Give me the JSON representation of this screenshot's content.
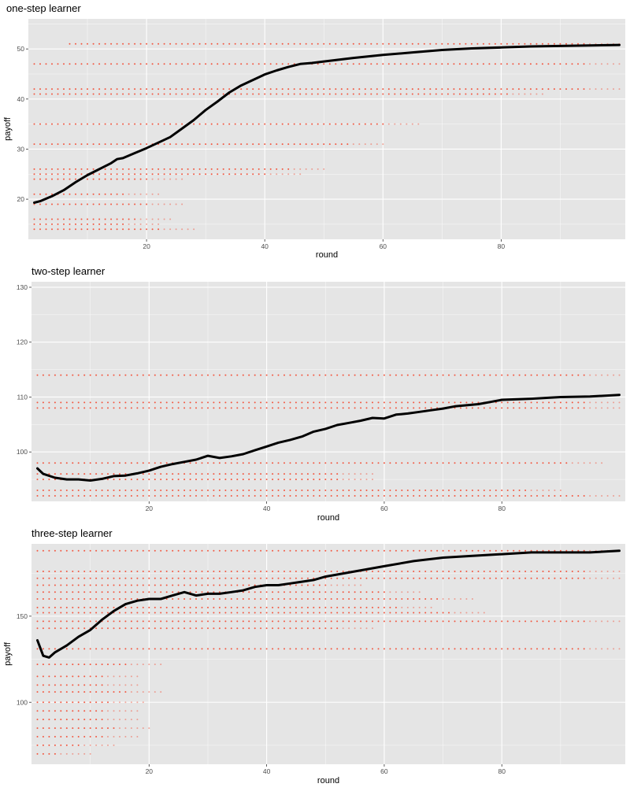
{
  "colors": {
    "panel": "#e5e5e5",
    "grid": "#ffffff",
    "points": "#f4472e",
    "line": "#000000"
  },
  "chart_data": [
    {
      "type": "scatter",
      "title": "one-step learner",
      "xlabel": "round",
      "ylabel": "payoff",
      "xlim": [
        0,
        101
      ],
      "ylim": [
        12,
        56
      ],
      "xticks": [
        20,
        40,
        60,
        80
      ],
      "yticks": [
        20,
        30,
        40,
        50
      ],
      "grid": true,
      "legend": "none",
      "point_series": [
        {
          "y": 51,
          "x_range": [
            7,
            100
          ]
        },
        {
          "y": 47,
          "x_range": [
            1,
            100
          ]
        },
        {
          "y": 42,
          "x_range": [
            1,
            100
          ]
        },
        {
          "y": 41,
          "x_range": [
            1,
            87
          ]
        },
        {
          "y": 35,
          "x_range": [
            1,
            66
          ]
        },
        {
          "y": 31,
          "x_range": [
            1,
            60
          ]
        },
        {
          "y": 26,
          "x_range": [
            1,
            50
          ]
        },
        {
          "y": 25,
          "x_range": [
            1,
            46
          ]
        },
        {
          "y": 24,
          "x_range": [
            1,
            26
          ]
        },
        {
          "y": 21,
          "x_range": [
            1,
            22
          ]
        },
        {
          "y": 19,
          "x_range": [
            1,
            26
          ]
        },
        {
          "y": 16,
          "x_range": [
            1,
            24
          ]
        },
        {
          "y": 15,
          "x_range": [
            1,
            22
          ]
        },
        {
          "y": 14,
          "x_range": [
            1,
            28
          ]
        }
      ],
      "mean_line": {
        "x": [
          1,
          2,
          4,
          6,
          8,
          10,
          12,
          14,
          15,
          16,
          18,
          20,
          22,
          24,
          26,
          28,
          30,
          32,
          34,
          36,
          38,
          40,
          42,
          44,
          46,
          48,
          50,
          55,
          60,
          65,
          70,
          75,
          80,
          85,
          90,
          95,
          100
        ],
        "y": [
          19.3,
          19.6,
          20.6,
          21.8,
          23.4,
          24.8,
          26.0,
          27.2,
          28.0,
          28.2,
          29.2,
          30.2,
          31.3,
          32.4,
          34.1,
          35.8,
          37.8,
          39.5,
          41.3,
          42.7,
          43.8,
          44.9,
          45.7,
          46.4,
          47.0,
          47.2,
          47.5,
          48.2,
          48.8,
          49.3,
          49.8,
          50.1,
          50.3,
          50.5,
          50.6,
          50.7,
          50.8
        ]
      }
    },
    {
      "type": "scatter",
      "title": "two-step learner",
      "xlabel": "round",
      "ylabel": "",
      "xlim": [
        0,
        101
      ],
      "ylim": [
        91,
        131
      ],
      "xticks": [
        20,
        40,
        60,
        80
      ],
      "yticks": [
        100,
        110,
        120,
        130
      ],
      "grid": true,
      "legend": "none",
      "point_series": [
        {
          "y": 114,
          "x_range": [
            1,
            100
          ]
        },
        {
          "y": 109,
          "x_range": [
            1,
            100
          ]
        },
        {
          "y": 108,
          "x_range": [
            1,
            100
          ]
        },
        {
          "y": 98,
          "x_range": [
            1,
            97
          ]
        },
        {
          "y": 96,
          "x_range": [
            1,
            58
          ]
        },
        {
          "y": 95,
          "x_range": [
            1,
            58
          ]
        },
        {
          "y": 93,
          "x_range": [
            1,
            90
          ]
        },
        {
          "y": 92,
          "x_range": [
            1,
            100
          ]
        }
      ],
      "mean_line": {
        "x": [
          1,
          2,
          4,
          6,
          8,
          10,
          12,
          14,
          16,
          18,
          20,
          22,
          24,
          26,
          28,
          30,
          32,
          34,
          36,
          38,
          40,
          42,
          44,
          46,
          48,
          50,
          52,
          54,
          56,
          58,
          60,
          62,
          64,
          66,
          68,
          70,
          72,
          74,
          76,
          78,
          80,
          85,
          90,
          95,
          100
        ],
        "y": [
          97.0,
          96.0,
          95.3,
          95.0,
          95.0,
          94.8,
          95.1,
          95.6,
          95.7,
          96.1,
          96.6,
          97.3,
          97.8,
          98.2,
          98.6,
          99.3,
          98.9,
          99.2,
          99.6,
          100.3,
          101.0,
          101.7,
          102.2,
          102.8,
          103.7,
          104.2,
          104.9,
          105.3,
          105.7,
          106.2,
          106.1,
          106.8,
          107.0,
          107.3,
          107.6,
          107.9,
          108.3,
          108.5,
          108.7,
          109.1,
          109.5,
          109.7,
          110.0,
          110.1,
          110.4
        ]
      }
    },
    {
      "type": "scatter",
      "title": "three-step learner",
      "xlabel": "round",
      "ylabel": "payoff",
      "xlim": [
        0,
        101
      ],
      "ylim": [
        64,
        192
      ],
      "xticks": [
        20,
        40,
        60,
        80
      ],
      "yticks": [
        100,
        150
      ],
      "grid": true,
      "legend": "none",
      "point_series": [
        {
          "y": 188,
          "x_range": [
            1,
            100
          ]
        },
        {
          "y": 176,
          "x_range": [
            1,
            100
          ]
        },
        {
          "y": 172,
          "x_range": [
            1,
            100
          ]
        },
        {
          "y": 168,
          "x_range": [
            1,
            56
          ]
        },
        {
          "y": 164,
          "x_range": [
            1,
            66
          ]
        },
        {
          "y": 160,
          "x_range": [
            1,
            75
          ]
        },
        {
          "y": 155,
          "x_range": [
            1,
            68
          ]
        },
        {
          "y": 152,
          "x_range": [
            1,
            77
          ]
        },
        {
          "y": 147,
          "x_range": [
            1,
            100
          ]
        },
        {
          "y": 143,
          "x_range": [
            1,
            58
          ]
        },
        {
          "y": 131,
          "x_range": [
            1,
            100
          ]
        },
        {
          "y": 122,
          "x_range": [
            1,
            22
          ]
        },
        {
          "y": 115,
          "x_range": [
            1,
            18
          ]
        },
        {
          "y": 110,
          "x_range": [
            1,
            18
          ]
        },
        {
          "y": 106,
          "x_range": [
            1,
            22
          ]
        },
        {
          "y": 100,
          "x_range": [
            1,
            19
          ]
        },
        {
          "y": 95,
          "x_range": [
            1,
            18
          ]
        },
        {
          "y": 90,
          "x_range": [
            1,
            18
          ]
        },
        {
          "y": 85,
          "x_range": [
            1,
            20
          ]
        },
        {
          "y": 80,
          "x_range": [
            1,
            18
          ]
        },
        {
          "y": 75,
          "x_range": [
            1,
            14
          ]
        },
        {
          "y": 70,
          "x_range": [
            1,
            10
          ]
        }
      ],
      "mean_line": {
        "x": [
          1,
          2,
          3,
          4,
          6,
          8,
          10,
          12,
          14,
          16,
          18,
          20,
          22,
          24,
          26,
          28,
          30,
          32,
          34,
          36,
          38,
          40,
          42,
          44,
          46,
          48,
          50,
          55,
          60,
          65,
          70,
          75,
          80,
          85,
          90,
          95,
          100
        ],
        "y": [
          136,
          127,
          126,
          129,
          133,
          138,
          142,
          148,
          153,
          157,
          159,
          160,
          160,
          162,
          164,
          162,
          163,
          163,
          164,
          165,
          167,
          168,
          168,
          169,
          170,
          171,
          173,
          176,
          179,
          182,
          184,
          185,
          186,
          187,
          187,
          187,
          188
        ]
      }
    }
  ]
}
